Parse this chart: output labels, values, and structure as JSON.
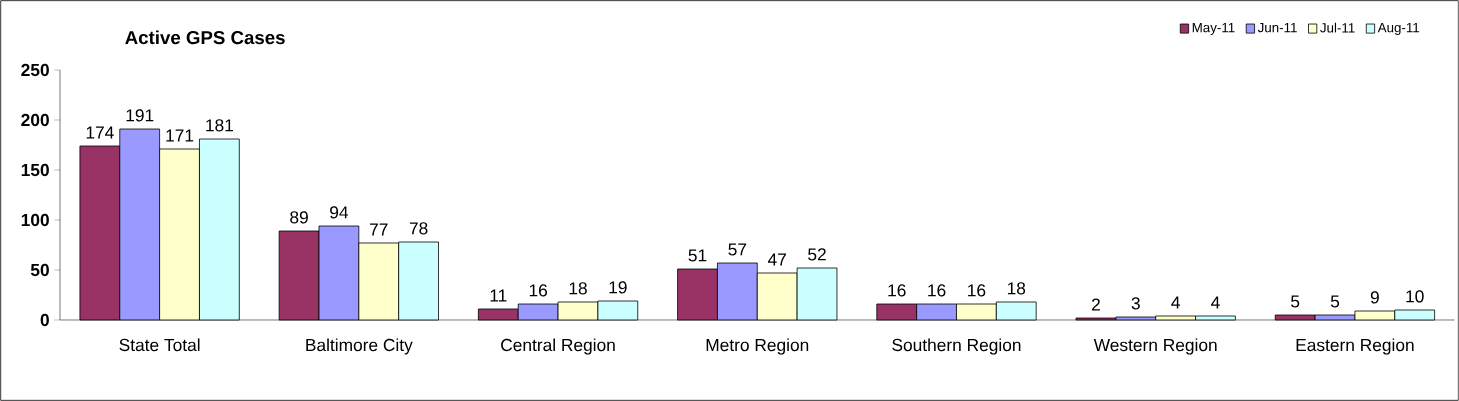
{
  "chart_data": {
    "type": "bar",
    "title": "Active GPS Cases",
    "categories": [
      "State Total",
      "Baltimore City",
      "Central Region",
      "Metro Region",
      "Southern Region",
      "Western Region",
      "Eastern Region"
    ],
    "series": [
      {
        "name": "May-11",
        "color": "#993366",
        "values": [
          174,
          89,
          11,
          51,
          16,
          2,
          5
        ]
      },
      {
        "name": "Jun-11",
        "color": "#9999ff",
        "values": [
          191,
          94,
          16,
          57,
          16,
          3,
          5
        ]
      },
      {
        "name": "Jul-11",
        "color": "#ffffcc",
        "values": [
          171,
          77,
          18,
          47,
          16,
          4,
          9
        ]
      },
      {
        "name": "Aug-11",
        "color": "#ccffff",
        "values": [
          181,
          78,
          19,
          52,
          18,
          4,
          10
        ]
      }
    ],
    "ylim": [
      0,
      250
    ],
    "yticks": [
      0,
      50,
      100,
      150,
      200,
      250
    ],
    "data_labels": true,
    "legend": "top right"
  }
}
